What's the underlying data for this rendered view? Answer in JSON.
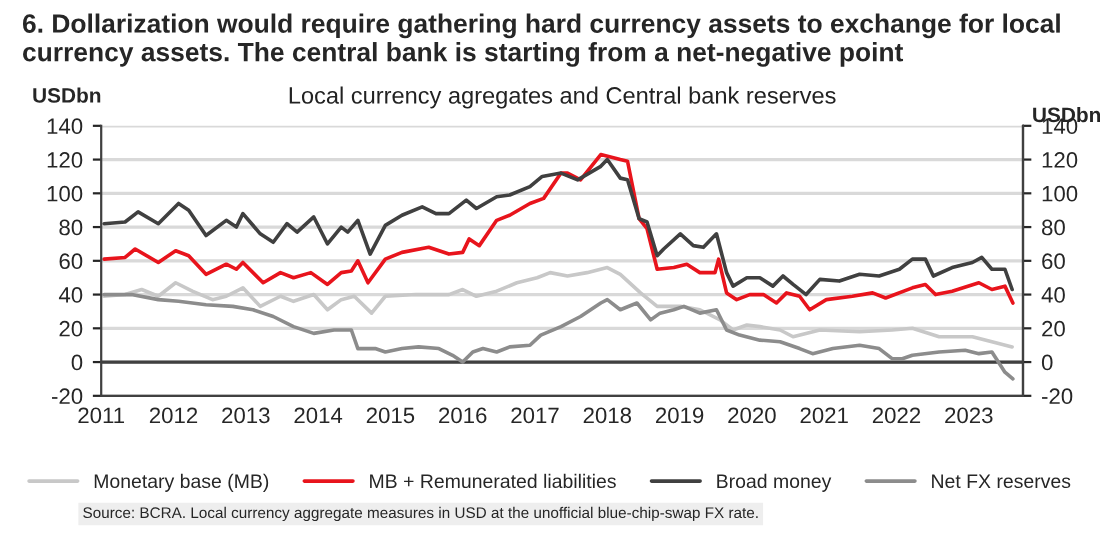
{
  "chart_data": {
    "type": "line",
    "title": "6. Dollarization would require gathering hard currency assets to exchange for local currency assets. The central bank is starting from a net-negative point",
    "subtitle": "Local currency agregates and Central bank reserves",
    "ylabel": "USDbn",
    "y2label": "USDbn",
    "annotations": [
      "Source: BCRA. Local currency aggregate measures in USD at the unofficial blue-chip-swap FX rate."
    ],
    "xlim": [
      2011,
      2023.75
    ],
    "xticks": [
      2011,
      2012,
      2013,
      2014,
      2015,
      2016,
      2017,
      2018,
      2019,
      2020,
      2021,
      2022,
      2023
    ],
    "ylim": [
      -20,
      140
    ],
    "yticks": [
      -20,
      0,
      20,
      40,
      60,
      80,
      100,
      120,
      140
    ],
    "y2lim": [
      -20,
      140
    ],
    "y2ticks": [
      -20,
      0,
      20,
      40,
      60,
      80,
      100,
      120,
      140
    ],
    "grid": "y",
    "legend": "bottom",
    "marker": "none",
    "line_style": "solid",
    "series": [
      {
        "name": "Monetary base (MB)",
        "color": "#c8c8c8",
        "x": [
          2011.04,
          2011.33,
          2011.56,
          2011.79,
          2012.03,
          2012.26,
          2012.54,
          2012.73,
          2012.96,
          2013.2,
          2013.48,
          2013.66,
          2013.94,
          2014.13,
          2014.32,
          2014.5,
          2014.74,
          2014.93,
          2015.35,
          2015.81,
          2016.0,
          2016.19,
          2016.47,
          2016.75,
          2017.03,
          2017.21,
          2017.45,
          2017.72,
          2018.0,
          2018.18,
          2018.46,
          2018.69,
          2019.01,
          2019.28,
          2019.56,
          2019.74,
          2019.93,
          2020.11,
          2020.39,
          2020.57,
          2020.94,
          2021.49,
          2021.94,
          2022.22,
          2022.59,
          2023.05,
          2023.32,
          2023.6
        ],
        "values": [
          39,
          40,
          43,
          39,
          47,
          42,
          37,
          39,
          44,
          33,
          39,
          36,
          40,
          31,
          37,
          39,
          29,
          39,
          40,
          40,
          43,
          39,
          42,
          47,
          50,
          53,
          51,
          53,
          56,
          52,
          41,
          33,
          33,
          31,
          25,
          19,
          22,
          21,
          19,
          15,
          19,
          18,
          19,
          20,
          15,
          15,
          12,
          9
        ]
      },
      {
        "name": "MB + Remunerated liabilities",
        "color": "#e8141c",
        "x": [
          2011.04,
          2011.33,
          2011.47,
          2011.79,
          2012.03,
          2012.21,
          2012.45,
          2012.73,
          2012.87,
          2012.96,
          2013.24,
          2013.48,
          2013.66,
          2013.9,
          2014.13,
          2014.32,
          2014.46,
          2014.55,
          2014.69,
          2014.93,
          2015.16,
          2015.53,
          2015.81,
          2016.0,
          2016.09,
          2016.23,
          2016.47,
          2016.65,
          2016.93,
          2017.12,
          2017.36,
          2017.45,
          2017.63,
          2017.91,
          2018.18,
          2018.28,
          2018.44,
          2018.55,
          2018.69,
          2018.92,
          2019.1,
          2019.28,
          2019.49,
          2019.54,
          2019.65,
          2019.79,
          2019.97,
          2020.16,
          2020.34,
          2020.48,
          2020.66,
          2020.8,
          2021.03,
          2021.39,
          2021.67,
          2021.85,
          2022.22,
          2022.4,
          2022.54,
          2022.77,
          2023.14,
          2023.32,
          2023.5,
          2023.61
        ],
        "values": [
          61,
          62,
          67,
          59,
          66,
          63,
          52,
          58,
          55,
          59,
          47,
          53,
          50,
          53,
          46,
          53,
          54,
          60,
          47,
          61,
          65,
          68,
          64,
          65,
          73,
          69,
          84,
          87,
          94,
          97,
          112,
          112,
          108,
          123,
          120,
          119,
          85,
          79,
          55,
          56,
          58,
          53,
          53,
          61,
          41,
          37,
          40,
          40,
          35,
          41,
          39,
          31,
          37,
          39,
          41,
          38,
          44,
          46,
          40,
          42,
          47,
          43,
          45,
          35
        ]
      },
      {
        "name": "Broad money",
        "color": "#404040",
        "x": [
          2011.04,
          2011.33,
          2011.51,
          2011.79,
          2012.07,
          2012.21,
          2012.45,
          2012.73,
          2012.87,
          2012.96,
          2013.2,
          2013.38,
          2013.57,
          2013.71,
          2013.94,
          2014.13,
          2014.32,
          2014.41,
          2014.55,
          2014.72,
          2014.93,
          2015.16,
          2015.44,
          2015.63,
          2015.81,
          2016.05,
          2016.19,
          2016.47,
          2016.65,
          2016.93,
          2017.1,
          2017.36,
          2017.59,
          2017.91,
          2018.0,
          2018.18,
          2018.28,
          2018.44,
          2018.55,
          2018.69,
          2018.78,
          2019.01,
          2019.19,
          2019.33,
          2019.51,
          2019.65,
          2019.74,
          2019.93,
          2020.11,
          2020.29,
          2020.43,
          2020.57,
          2020.75,
          2020.94,
          2021.21,
          2021.49,
          2021.76,
          2022.04,
          2022.22,
          2022.4,
          2022.51,
          2022.77,
          2023.05,
          2023.18,
          2023.32,
          2023.5,
          2023.6
        ],
        "values": [
          82,
          83,
          89,
          82,
          94,
          90,
          75,
          84,
          80,
          88,
          76,
          71,
          82,
          77,
          86,
          70,
          80,
          77,
          84,
          64,
          81,
          87,
          92,
          88,
          88,
          96,
          91,
          98,
          99,
          104,
          110,
          112,
          108,
          116,
          120,
          109,
          108,
          85,
          83,
          63,
          67,
          76,
          69,
          68,
          76,
          53,
          45,
          50,
          50,
          45,
          51,
          46,
          40,
          49,
          48,
          52,
          51,
          55,
          61,
          61,
          51,
          56,
          59,
          62,
          55,
          55,
          43
        ]
      },
      {
        "name": "Net FX reserves",
        "color": "#8c8c8c",
        "x": [
          2011.04,
          2011.42,
          2011.79,
          2012.07,
          2012.45,
          2012.82,
          2013.1,
          2013.38,
          2013.66,
          2013.94,
          2014.22,
          2014.46,
          2014.55,
          2014.79,
          2014.93,
          2015.16,
          2015.39,
          2015.67,
          2015.86,
          2016.0,
          2016.14,
          2016.28,
          2016.47,
          2016.65,
          2016.93,
          2017.08,
          2017.36,
          2017.63,
          2017.91,
          2018.0,
          2018.18,
          2018.41,
          2018.6,
          2018.73,
          2018.92,
          2019.06,
          2019.28,
          2019.51,
          2019.65,
          2019.83,
          2020.11,
          2020.39,
          2020.66,
          2020.84,
          2021.12,
          2021.49,
          2021.76,
          2021.94,
          2022.08,
          2022.22,
          2022.59,
          2022.95,
          2023.14,
          2023.32,
          2023.5,
          2023.61
        ],
        "values": [
          40,
          40,
          37,
          36,
          34,
          33,
          31,
          27,
          21,
          17,
          19,
          19,
          8,
          8,
          6,
          8,
          9,
          8,
          4,
          0,
          6,
          8,
          6,
          9,
          10,
          16,
          21,
          27,
          35,
          37,
          31,
          35,
          25,
          29,
          31,
          33,
          29,
          31,
          19,
          16,
          13,
          12,
          8,
          5,
          8,
          10,
          8,
          2,
          2,
          4,
          6,
          7,
          5,
          6,
          -6,
          -10
        ]
      }
    ]
  }
}
